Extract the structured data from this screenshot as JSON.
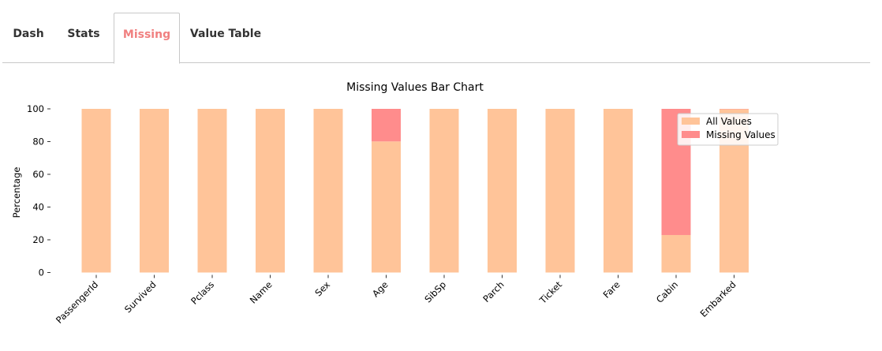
{
  "tabs": [
    {
      "label": "Dash",
      "active": false
    },
    {
      "label": "Stats",
      "active": false
    },
    {
      "label": "Missing",
      "active": true
    },
    {
      "label": "Value Table",
      "active": false
    }
  ],
  "colors": {
    "active_tab": "#f08080",
    "all_values": "#ffc499",
    "missing_values": "#ff8c8c"
  },
  "chart_data": {
    "type": "bar",
    "title": "Missing Values Bar Chart",
    "xlabel": "",
    "ylabel": "Percentage",
    "ylim": [
      0,
      100
    ],
    "yticks": [
      "0",
      "20",
      "40",
      "60",
      "80",
      "100"
    ],
    "categories": [
      "PassengerId",
      "Survived",
      "Pclass",
      "Name",
      "Sex",
      "Age",
      "SibSp",
      "Parch",
      "Ticket",
      "Fare",
      "Cabin",
      "Embarked"
    ],
    "series": [
      {
        "name": "All Values",
        "values": [
          100,
          100,
          100,
          100,
          100,
          80.1,
          100,
          100,
          100,
          100,
          22.9,
          99.8
        ]
      },
      {
        "name": "Missing Values",
        "values": [
          0,
          0,
          0,
          0,
          0,
          19.9,
          0,
          0,
          0,
          0,
          77.1,
          0.2
        ]
      }
    ],
    "legend": "top-right",
    "grid": false
  }
}
